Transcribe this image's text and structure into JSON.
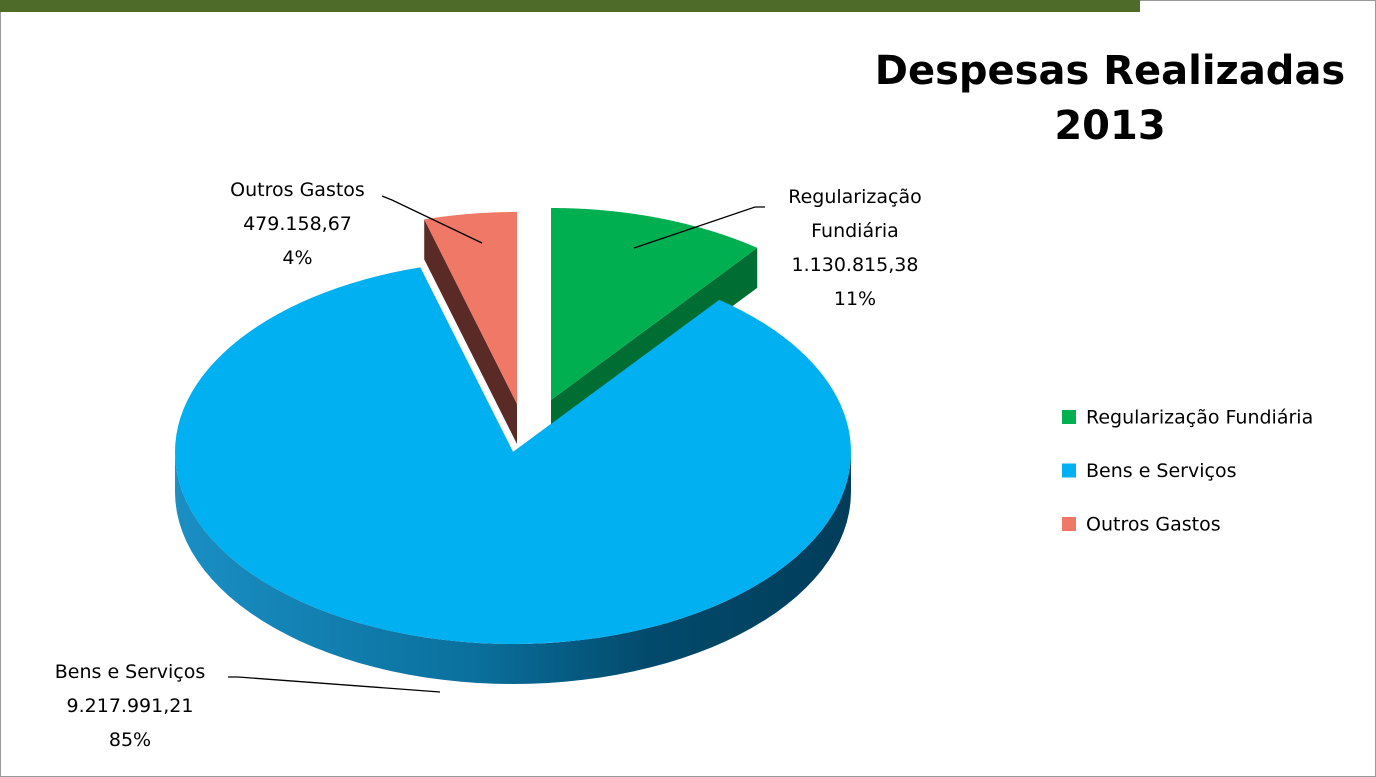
{
  "chart_data": {
    "type": "pie",
    "title": "Despesas Realizadas",
    "subtitle": "2013",
    "categories": [
      "Regularização Fundiária",
      "Bens e Serviços",
      "Outros Gastos"
    ],
    "values": [
      1130815.38,
      9217991.21,
      479158.67
    ],
    "value_labels": [
      "1.130.815,38",
      "9.217.991,21",
      "479.158,67"
    ],
    "percentages": [
      11,
      85,
      4
    ],
    "percentage_labels": [
      "11%",
      "85%",
      "4%"
    ],
    "colors": [
      "#00b050",
      "#00b0f0",
      "#f07866"
    ],
    "legend": "right"
  }
}
